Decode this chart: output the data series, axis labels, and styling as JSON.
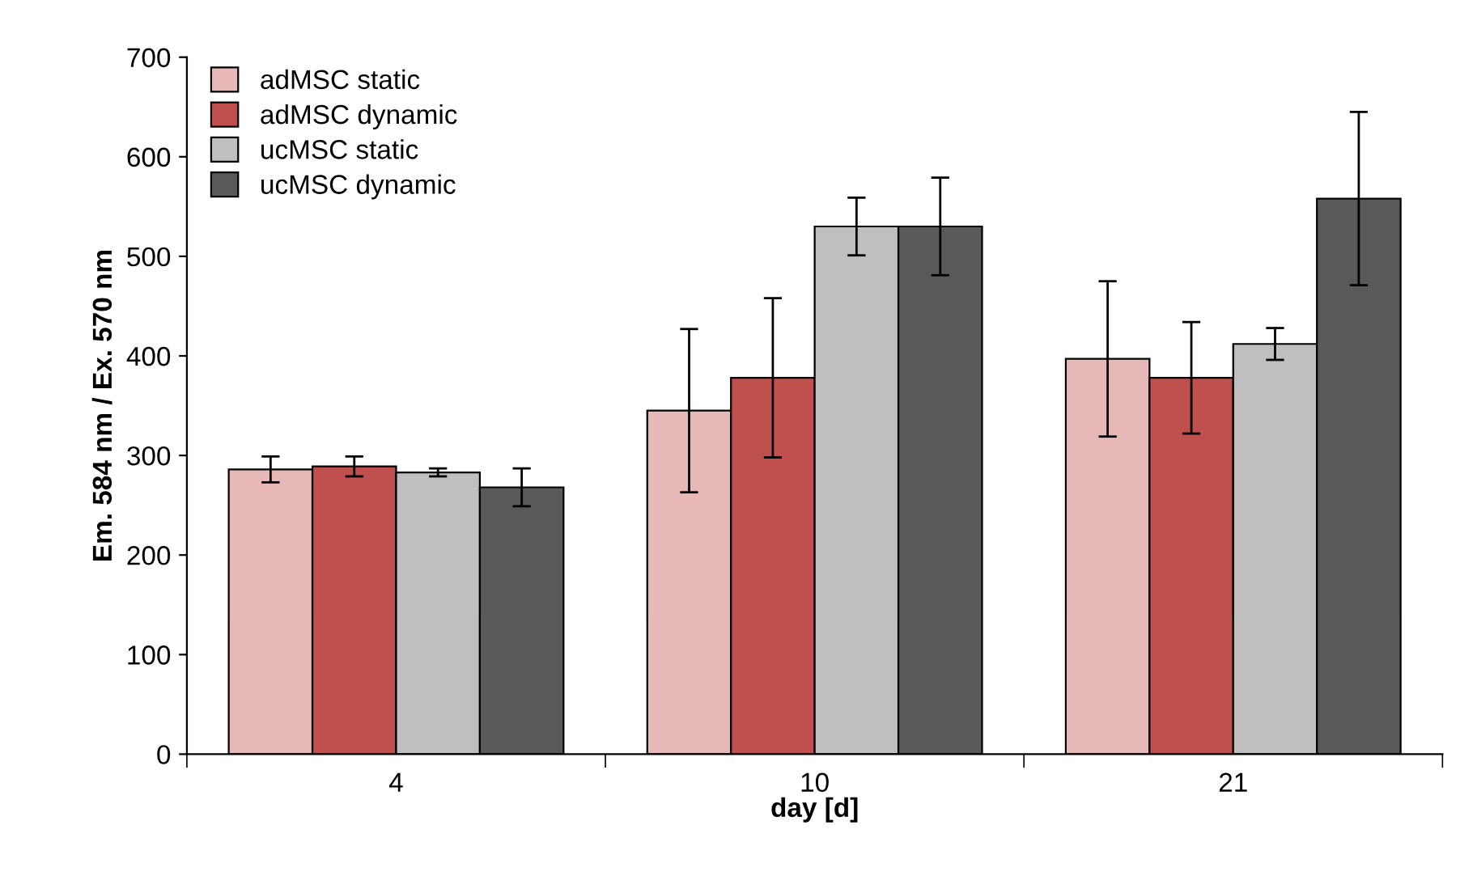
{
  "chart_data": {
    "type": "bar",
    "xlabel": "day [d]",
    "ylabel": "Em. 584 nm / Ex. 570 nm",
    "categories": [
      "4",
      "10",
      "21"
    ],
    "series": [
      {
        "name": "adMSC static",
        "color": "#e6b9b8",
        "values": [
          286,
          345,
          397
        ],
        "errors": [
          13,
          82,
          78
        ]
      },
      {
        "name": "adMSC dynamic",
        "color": "#c0504d",
        "values": [
          289,
          378,
          378
        ],
        "errors": [
          10,
          80,
          56
        ]
      },
      {
        "name": "ucMSC static",
        "color": "#bfbfbf",
        "values": [
          283,
          530,
          412
        ],
        "errors": [
          4,
          29,
          16
        ]
      },
      {
        "name": "ucMSC dynamic",
        "color": "#595959",
        "values": [
          268,
          530,
          558
        ],
        "errors": [
          19,
          49,
          87
        ]
      }
    ],
    "ylim": [
      0,
      700
    ],
    "yticks": [
      0,
      100,
      200,
      300,
      400,
      500,
      600,
      700
    ],
    "grid": false,
    "legend": "top left"
  }
}
